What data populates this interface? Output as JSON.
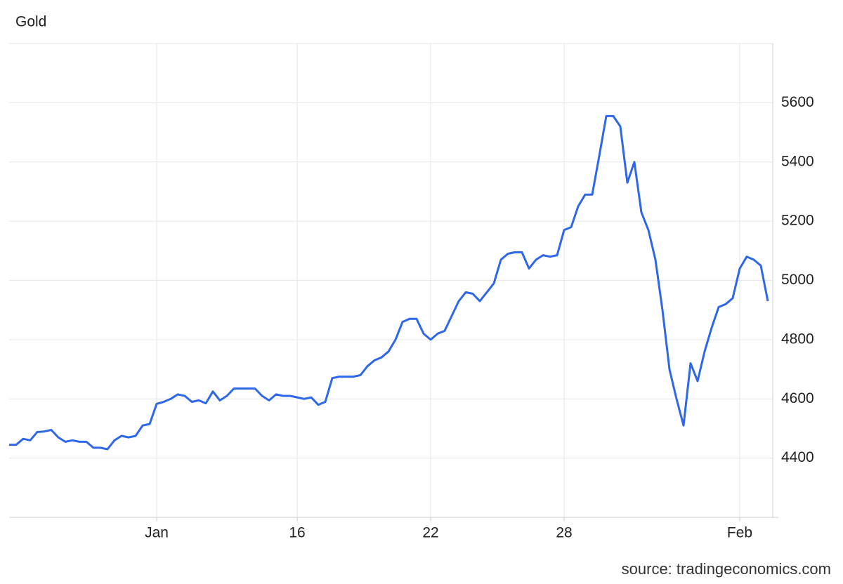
{
  "chart_data": {
    "type": "line",
    "title": "Gold",
    "source": "source: tradingeconomics.com",
    "categories": [
      null,
      null,
      null,
      null,
      null,
      null,
      null,
      null,
      null,
      null,
      null,
      null,
      null,
      null,
      null,
      null,
      null,
      null,
      null,
      null,
      null,
      "Jan",
      null,
      null,
      null,
      null,
      null,
      null,
      null,
      null,
      null,
      null,
      null,
      null,
      null,
      null,
      null,
      null,
      null,
      null,
      null,
      "16",
      null,
      null,
      null,
      null,
      null,
      null,
      null,
      null,
      null,
      null,
      null,
      null,
      null,
      null,
      null,
      null,
      null,
      null,
      "22",
      null,
      null,
      null,
      null,
      null,
      null,
      null,
      null,
      null,
      null,
      null,
      null,
      null,
      null,
      null,
      null,
      null,
      null,
      "28",
      null,
      null,
      null,
      null,
      null,
      null,
      null,
      null,
      null,
      null,
      null,
      null,
      null,
      null,
      null,
      null,
      null,
      null,
      null,
      null,
      null,
      null,
      null,
      null,
      "Feb",
      null,
      null,
      null,
      null
    ],
    "series": [
      {
        "name": "Gold",
        "color": "#2f67ea",
        "values": [
          4445,
          4445,
          4465,
          4460,
          4488,
          4490,
          4495,
          4470,
          4455,
          4460,
          4455,
          4455,
          4435,
          4435,
          4430,
          4460,
          4475,
          4470,
          4475,
          4510,
          4515,
          4583,
          4590,
          4600,
          4615,
          4610,
          4590,
          4595,
          4585,
          4625,
          4595,
          4610,
          4635,
          4635,
          4635,
          4635,
          4610,
          4595,
          4615,
          4610,
          4610,
          4605,
          4600,
          4605,
          4580,
          4590,
          4670,
          4675,
          4675,
          4675,
          4680,
          4710,
          4730,
          4740,
          4760,
          4800,
          4860,
          4870,
          4870,
          4820,
          4800,
          4820,
          4830,
          4880,
          4930,
          4960,
          4955,
          4930,
          4960,
          4990,
          5070,
          5090,
          5095,
          5095,
          5040,
          5070,
          5085,
          5080,
          5085,
          5170,
          5180,
          5250,
          5290,
          5290,
          5420,
          5555,
          5555,
          5520,
          5330,
          5400,
          5230,
          5170,
          5070,
          4900,
          4700,
          4600,
          4510,
          4720,
          4660,
          4760,
          4840,
          4910,
          4920,
          4940,
          5040,
          5080,
          5070,
          5050,
          4930
        ]
      }
    ],
    "ylim": [
      4200,
      5800
    ],
    "yticks": [
      4400,
      4600,
      4800,
      5000,
      5200,
      5400,
      5600
    ],
    "grid": true
  }
}
